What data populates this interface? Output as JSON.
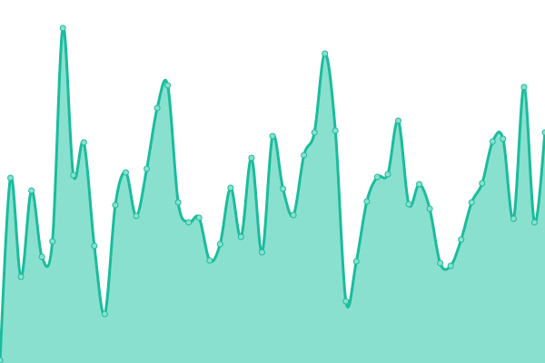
{
  "chart_data": {
    "type": "area",
    "title": "",
    "xlabel": "",
    "ylabel": "",
    "axes_visible": false,
    "grid": false,
    "legend": "none",
    "smooth": true,
    "markers": true,
    "ylim": [
      0,
      400
    ],
    "x": [
      0,
      1,
      2,
      3,
      4,
      5,
      6,
      7,
      8,
      9,
      10,
      11,
      12,
      13,
      14,
      15,
      16,
      17,
      18,
      19,
      20,
      21,
      22,
      23,
      24,
      25,
      26,
      27,
      28,
      29,
      30,
      31,
      32,
      33,
      34,
      35,
      36,
      37,
      38,
      39,
      40,
      41,
      42,
      43,
      44,
      45,
      46,
      47,
      48,
      49,
      50,
      51,
      52
    ],
    "series": [
      {
        "values": [
          3,
          204,
          95,
          190,
          117,
          134,
          369,
          207,
          243,
          129,
          54,
          174,
          210,
          162,
          214,
          281,
          306,
          177,
          155,
          160,
          113,
          131,
          193,
          139,
          226,
          122,
          250,
          192,
          163,
          229,
          254,
          341,
          256,
          68,
          112,
          178,
          205,
          208,
          267,
          175,
          197,
          170,
          110,
          107,
          136,
          177,
          198,
          244,
          247,
          159,
          304,
          155,
          254
        ]
      }
    ],
    "colors": {
      "line": "#1abc9c",
      "fill": "#8ae0cf",
      "marker_fill": "#8ae0cf",
      "marker_stroke": "#1abc9c"
    }
  }
}
